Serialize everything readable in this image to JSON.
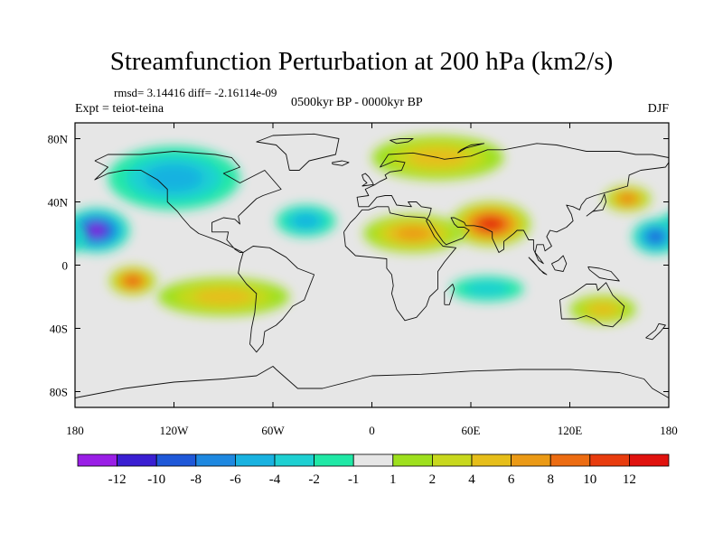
{
  "chart_data": {
    "type": "heatmap",
    "title": "Streamfunction Perturbation at 200 hPa (km2/s)",
    "stats_text": "rmsd= 3.14416 diff= -2.16114e-09",
    "left_label": "Expt = teiot-teina",
    "center_label": "0500kyr BP - 0000kyr BP",
    "right_label": "DJF",
    "projection": "cylindrical equidistant",
    "xlim": [
      -180,
      180
    ],
    "ylim": [
      -90,
      90
    ],
    "x_ticks": [
      {
        "value": -180,
        "label": "180"
      },
      {
        "value": -120,
        "label": "120W"
      },
      {
        "value": -60,
        "label": "60W"
      },
      {
        "value": 0,
        "label": "0"
      },
      {
        "value": 60,
        "label": "60E"
      },
      {
        "value": 120,
        "label": "120E"
      },
      {
        "value": 180,
        "label": "180"
      }
    ],
    "y_ticks": [
      {
        "value": 80,
        "label": "80N"
      },
      {
        "value": 40,
        "label": "40N"
      },
      {
        "value": 0,
        "label": "0"
      },
      {
        "value": -40,
        "label": "40S"
      },
      {
        "value": -80,
        "label": "80S"
      }
    ],
    "colorbar": {
      "labels": [
        "-12",
        "-10",
        "-8",
        "-6",
        "-4",
        "-2",
        "-1",
        "1",
        "2",
        "4",
        "6",
        "8",
        "10",
        "12"
      ],
      "colors": [
        "#9a1fe6",
        "#3a1fd2",
        "#1f58d8",
        "#1e88e0",
        "#19b2e0",
        "#1ed0d2",
        "#20e8a6",
        "#e6e6e6",
        "#9ee01e",
        "#c8d81e",
        "#e6be1a",
        "#eb9a16",
        "#ec6c12",
        "#e83c0e",
        "#e0120e"
      ]
    },
    "features": [
      {
        "name": "central-pacific-low",
        "lon": -167,
        "lat": 22,
        "value": -12,
        "rx": 20,
        "ry": 14
      },
      {
        "name": "west-pacific-low",
        "lon": 172,
        "lat": 18,
        "value": -9,
        "rx": 14,
        "ry": 11
      },
      {
        "name": "south-asia-high",
        "lon": 72,
        "lat": 26,
        "value": 12,
        "rx": 24,
        "ry": 14
      },
      {
        "name": "north-africa-high",
        "lon": 25,
        "lat": 20,
        "value": 6,
        "rx": 30,
        "ry": 12
      },
      {
        "name": "south-pacific-high",
        "lon": -145,
        "lat": -10,
        "value": 10,
        "rx": 14,
        "ry": 9
      },
      {
        "name": "nw-pacific-high",
        "lon": 155,
        "lat": 42,
        "value": 8,
        "rx": 14,
        "ry": 8
      },
      {
        "name": "eurasia-high",
        "lon": 40,
        "lat": 68,
        "value": 4,
        "rx": 40,
        "ry": 14
      },
      {
        "name": "south-atlantic-high",
        "lon": -90,
        "lat": -20,
        "value": 4,
        "rx": 40,
        "ry": 12
      },
      {
        "name": "australia-high",
        "lon": 140,
        "lat": -28,
        "value": 4,
        "rx": 20,
        "ry": 9
      },
      {
        "name": "north-america-low",
        "lon": -120,
        "lat": 55,
        "value": -4,
        "rx": 40,
        "ry": 20
      },
      {
        "name": "atlantic-low",
        "lon": -40,
        "lat": 28,
        "value": -4,
        "rx": 18,
        "ry": 10
      },
      {
        "name": "indian-ocean-low",
        "lon": 70,
        "lat": -15,
        "value": -3,
        "rx": 22,
        "ry": 8
      }
    ]
  }
}
